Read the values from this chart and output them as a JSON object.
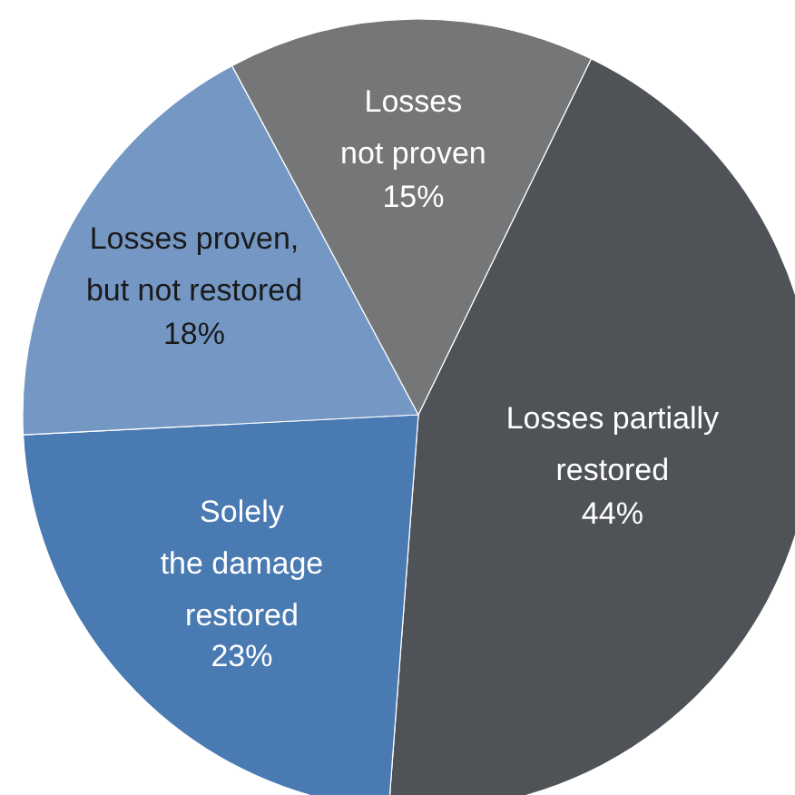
{
  "chart_data": {
    "type": "pie",
    "categories": [
      "Losses partially\nrestored",
      "Solely\nthe damage\nrestored",
      "Losses proven,\nbut not restored",
      "Losses\nnot proven"
    ],
    "values": [
      44,
      23,
      18,
      15
    ],
    "colors": [
      "#4f5256",
      "#4a7ab2",
      "#7497c4",
      "#747677"
    ],
    "value_labels": [
      "44%",
      "23%",
      "18%",
      "15%"
    ]
  }
}
